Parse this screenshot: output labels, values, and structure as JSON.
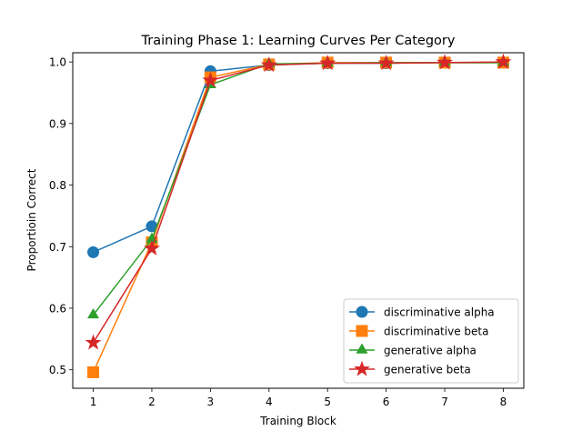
{
  "chart_data": {
    "type": "line",
    "title": "Training Phase 1: Learning Curves Per Category",
    "xlabel": "Training Block",
    "ylabel": "Proportioin Correct",
    "x": [
      1,
      2,
      3,
      4,
      5,
      6,
      7,
      8
    ],
    "xlim": [
      0.65,
      8.35
    ],
    "ylim": [
      0.47,
      1.015
    ],
    "xticks": [
      "1",
      "2",
      "3",
      "4",
      "5",
      "6",
      "7",
      "8"
    ],
    "yticks": [
      0.5,
      0.6,
      0.7,
      0.8,
      0.9,
      1.0
    ],
    "ytick_labels": [
      "0.5",
      "0.6",
      "0.7",
      "0.8",
      "0.9",
      "1.0"
    ],
    "grid": false,
    "legend_position": "lower-right",
    "series": [
      {
        "name": "discriminative alpha",
        "color": "#1f77b4",
        "marker": "circle",
        "values": [
          0.691,
          0.733,
          0.985,
          0.995,
          0.998,
          0.998,
          0.999,
          0.999
        ]
      },
      {
        "name": "discriminative beta",
        "color": "#ff7f0e",
        "marker": "square",
        "values": [
          0.496,
          0.707,
          0.975,
          0.996,
          0.999,
          0.999,
          0.999,
          0.999
        ]
      },
      {
        "name": "generative alpha",
        "color": "#2ca02c",
        "marker": "triangle",
        "values": [
          0.589,
          0.712,
          0.963,
          0.997,
          0.998,
          0.999,
          0.999,
          0.999
        ]
      },
      {
        "name": "generative beta",
        "color": "#d62728",
        "marker": "star",
        "values": [
          0.544,
          0.697,
          0.97,
          0.995,
          0.998,
          0.998,
          0.999,
          1.0
        ]
      }
    ]
  }
}
